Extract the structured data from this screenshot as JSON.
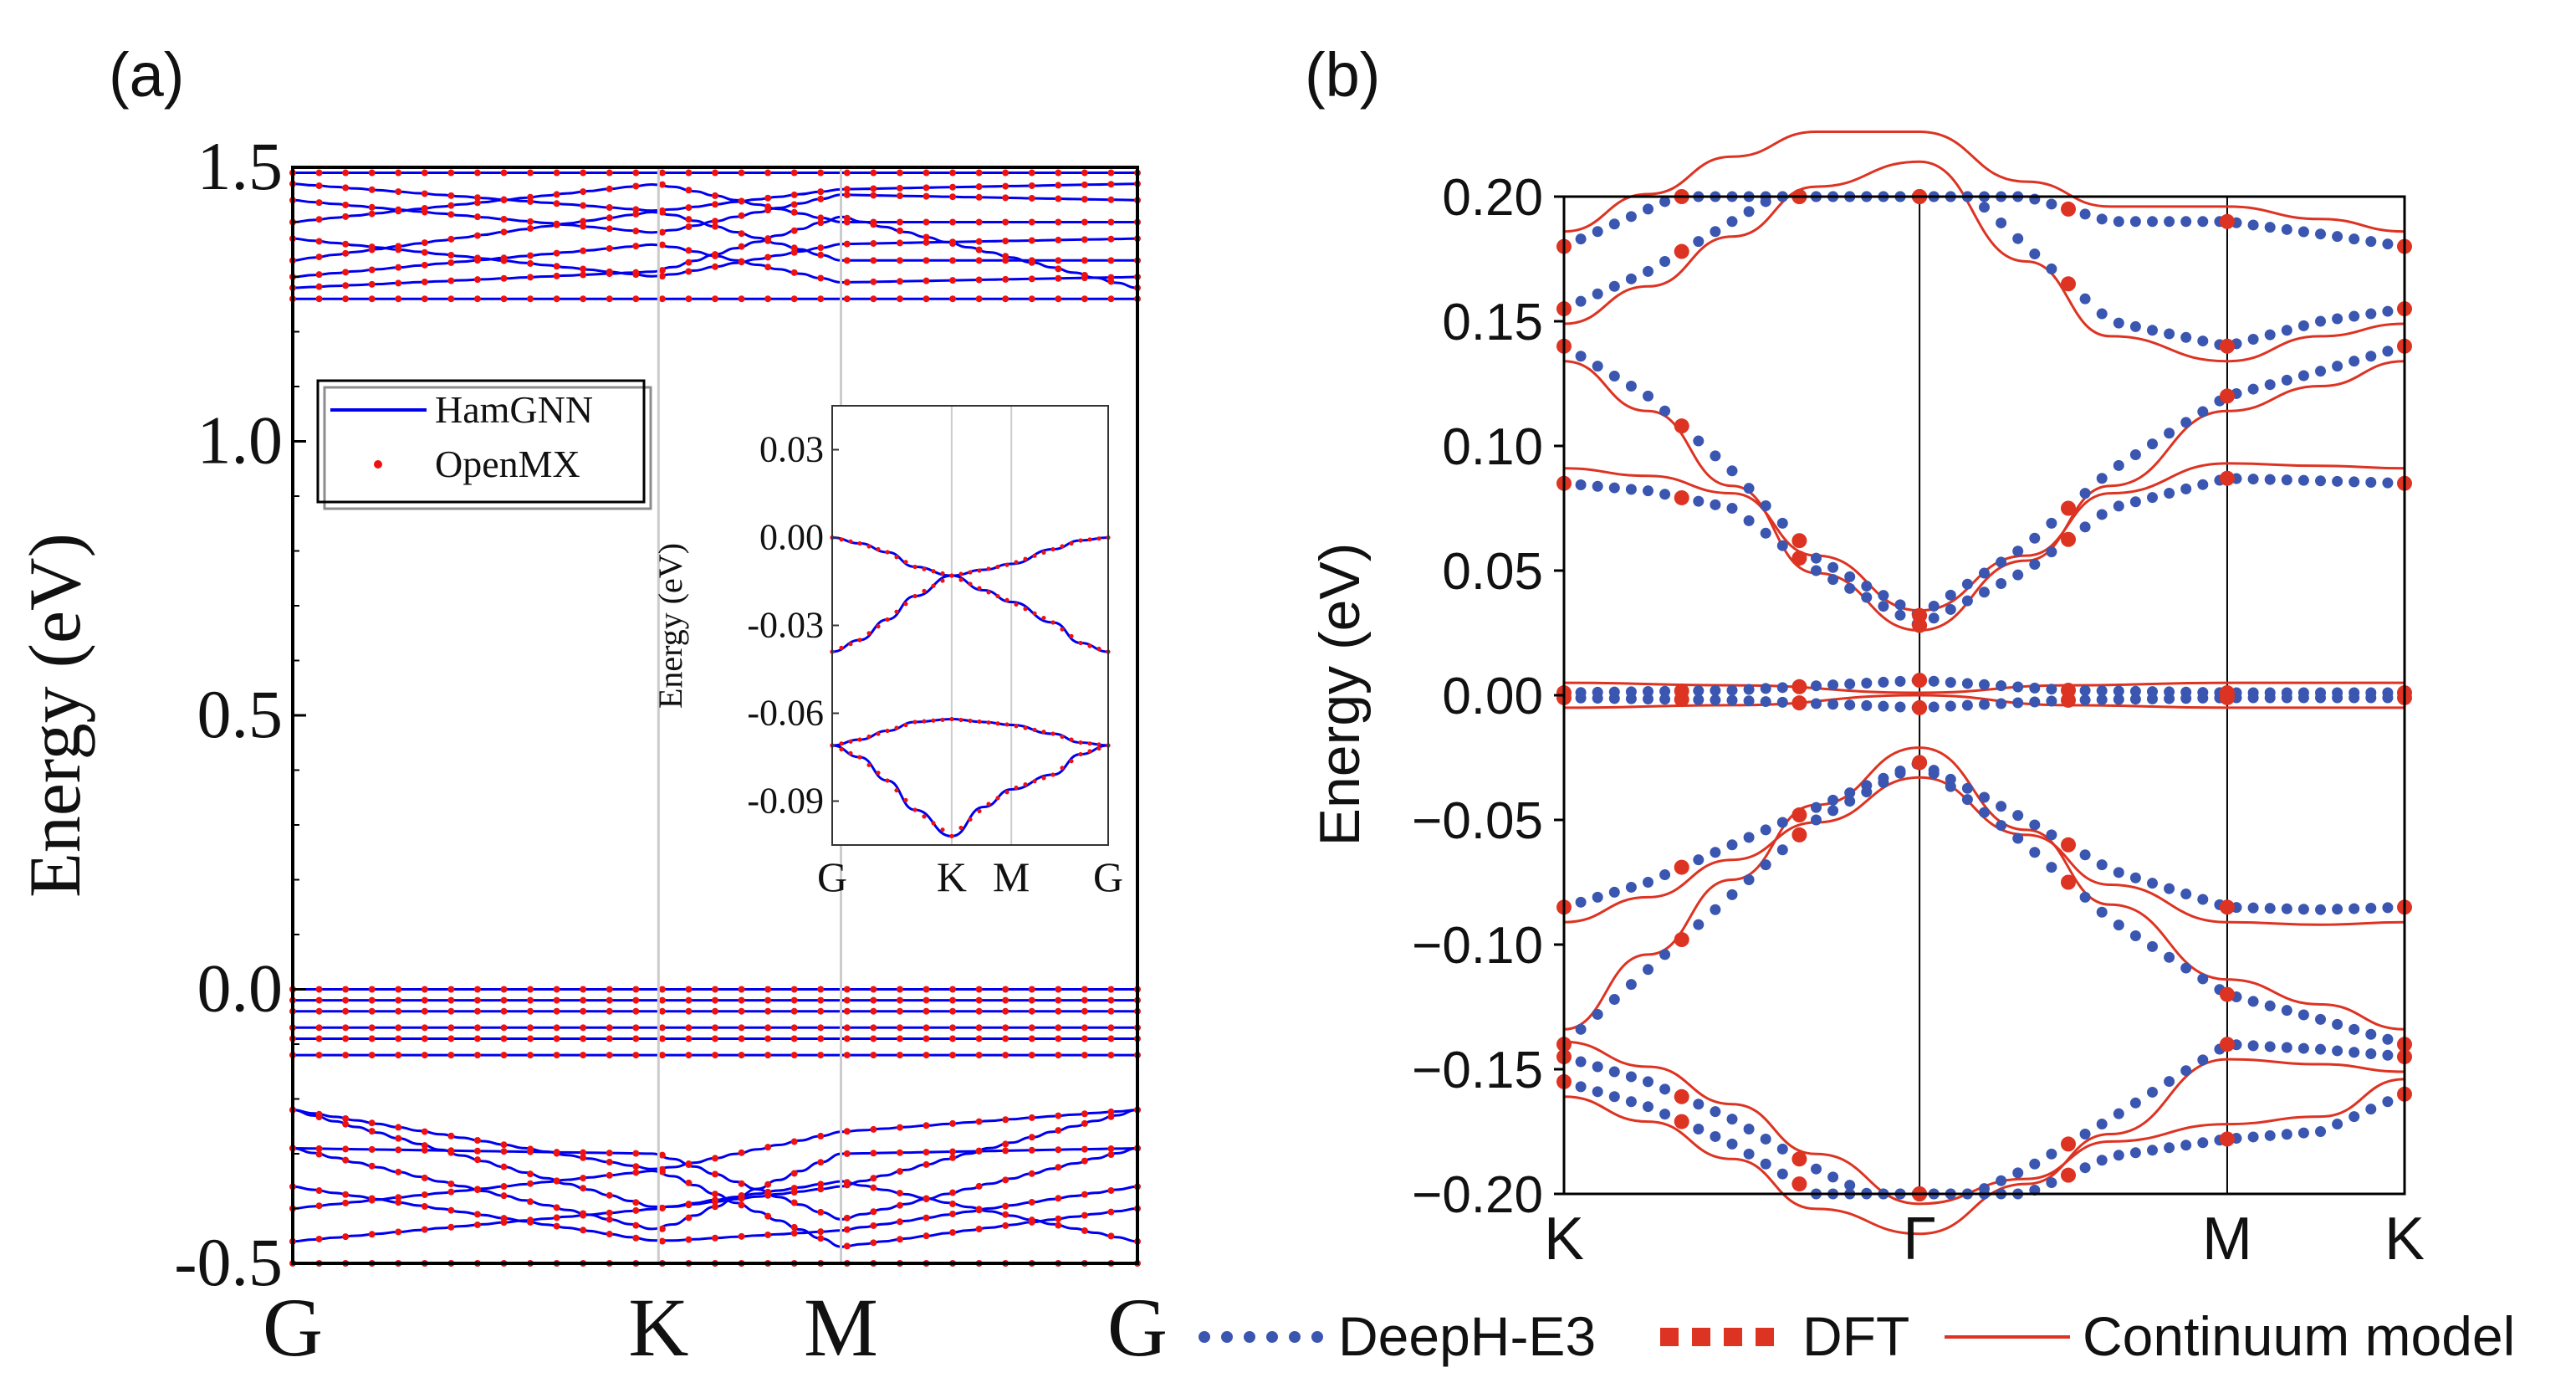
{
  "chart_data": [
    {
      "panel_label": "(a)",
      "type": "line",
      "title": "",
      "xlabel": "",
      "ylabel": "Energy (eV)",
      "ylim": [
        -0.5,
        1.5
      ],
      "yticks": [
        "1.5",
        "1.0",
        "0.5",
        "0.0",
        "-0.5"
      ],
      "ytick_values": [
        1.5,
        1.0,
        0.5,
        0.0,
        -0.5
      ],
      "kpath": [
        "G",
        "K",
        "M",
        "G"
      ],
      "kpath_positions": [
        0,
        0.433,
        0.649,
        1.0
      ],
      "legend": {
        "placement": "upper-left",
        "entries": [
          "HamGNN",
          "OpenMX"
        ]
      },
      "colors": {
        "HamGNN": "#0000ee",
        "OpenMX": "#ee1111",
        "gridline": "#cccccc"
      },
      "bands": {
        "conduction_min": [
          1.26,
          1.26,
          1.26,
          1.26
        ],
        "conduction_max": [
          1.49,
          1.49,
          1.49,
          1.49
        ],
        "valence_top": [
          0.0,
          0.0,
          0.0,
          0.0
        ],
        "valence_bottom": [
          -0.5,
          -0.5,
          -0.5,
          -0.5
        ]
      },
      "inset": {
        "ylabel": "Energy (eV)",
        "ylim": [
          -0.105,
          0.045
        ],
        "yticks": [
          "0.03",
          "0.00",
          "-0.03",
          "-0.06",
          "-0.09"
        ],
        "ytick_values": [
          0.03,
          0.0,
          -0.03,
          -0.06,
          -0.09
        ],
        "kpath": [
          "G",
          "K",
          "M",
          "G"
        ],
        "kpath_positions": [
          0,
          0.433,
          0.649,
          1.0
        ],
        "series": [
          {
            "name": "band1",
            "x": [
              0,
              0.1,
              0.2,
              0.3,
              0.433,
              0.55,
              0.649,
              0.8,
              0.9,
              1.0
            ],
            "values": [
              0.0,
              -0.002,
              -0.005,
              -0.01,
              -0.013,
              -0.011,
              -0.009,
              -0.004,
              -0.001,
              0.0
            ]
          },
          {
            "name": "band2",
            "x": [
              0,
              0.1,
              0.2,
              0.3,
              0.433,
              0.55,
              0.649,
              0.8,
              0.9,
              1.0
            ],
            "values": [
              -0.039,
              -0.035,
              -0.028,
              -0.02,
              -0.013,
              -0.018,
              -0.022,
              -0.029,
              -0.036,
              -0.039
            ]
          },
          {
            "name": "band3",
            "x": [
              0,
              0.1,
              0.2,
              0.3,
              0.433,
              0.55,
              0.649,
              0.8,
              0.9,
              1.0
            ],
            "values": [
              -0.071,
              -0.069,
              -0.066,
              -0.063,
              -0.062,
              -0.063,
              -0.064,
              -0.067,
              -0.07,
              -0.071
            ]
          },
          {
            "name": "band4",
            "x": [
              0,
              0.1,
              0.2,
              0.3,
              0.433,
              0.55,
              0.649,
              0.8,
              0.9,
              1.0
            ],
            "values": [
              -0.071,
              -0.075,
              -0.083,
              -0.093,
              -0.102,
              -0.092,
              -0.086,
              -0.081,
              -0.074,
              -0.071
            ]
          }
        ]
      }
    },
    {
      "panel_label": "(b)",
      "type": "line",
      "title": "",
      "xlabel": "",
      "ylabel": "Energy (eV)",
      "ylim": [
        -0.2,
        0.2
      ],
      "yticks": [
        "0.20",
        "0.15",
        "0.10",
        "0.05",
        "0.00",
        "−0.05",
        "−0.10",
        "−0.15",
        "−0.20"
      ],
      "ytick_values": [
        0.2,
        0.15,
        0.1,
        0.05,
        0.0,
        -0.05,
        -0.1,
        -0.15,
        -0.2
      ],
      "kpath": [
        "K",
        "Γ",
        "M",
        "K"
      ],
      "kpath_positions": [
        0,
        0.423,
        0.789,
        1.0
      ],
      "legend": {
        "placement": "bottom",
        "entries": [
          "DeepH-E3",
          "DFT",
          "Continuum model"
        ]
      },
      "colors": {
        "DeepH-E3": "#3a56b0",
        "DFT": "#dd3322",
        "Continuum model": "#dd3322"
      },
      "series": [
        {
          "name": "c1",
          "x": [
            0,
            0.1,
            0.2,
            0.3,
            0.423,
            0.55,
            0.65,
            0.789,
            0.9,
            1.0
          ],
          "values": [
            0.14,
            0.12,
            0.09,
            0.055,
            0.032,
            0.06,
            0.09,
            0.12,
            0.13,
            0.14
          ]
        },
        {
          "name": "c2",
          "x": [
            0,
            0.1,
            0.2,
            0.3,
            0.423,
            0.55,
            0.65,
            0.789,
            0.9,
            1.0
          ],
          "values": [
            0.085,
            0.082,
            0.075,
            0.05,
            0.028,
            0.05,
            0.075,
            0.087,
            0.086,
            0.085
          ]
        },
        {
          "name": "c3",
          "x": [
            0,
            0.1,
            0.2,
            0.3,
            0.423,
            0.55,
            0.65,
            0.789,
            0.9,
            1.0
          ],
          "values": [
            0.155,
            0.17,
            0.19,
            0.21,
            0.22,
            0.18,
            0.15,
            0.14,
            0.15,
            0.155
          ]
        },
        {
          "name": "c4",
          "x": [
            0,
            0.1,
            0.2,
            0.3,
            0.423,
            0.55,
            0.65,
            0.789,
            0.9,
            1.0
          ],
          "values": [
            0.18,
            0.195,
            0.21,
            0.22,
            0.22,
            0.2,
            0.19,
            0.19,
            0.185,
            0.18
          ]
        },
        {
          "name": "f1",
          "x": [
            0,
            0.2,
            0.423,
            0.6,
            0.789,
            1.0
          ],
          "values": [
            0.001,
            0.002,
            0.006,
            0.002,
            0.001,
            0.001
          ]
        },
        {
          "name": "f2",
          "x": [
            0,
            0.2,
            0.423,
            0.6,
            0.789,
            1.0
          ],
          "values": [
            -0.001,
            -0.002,
            -0.005,
            -0.002,
            -0.001,
            -0.001
          ]
        },
        {
          "name": "v1",
          "x": [
            0,
            0.1,
            0.2,
            0.3,
            0.423,
            0.55,
            0.65,
            0.789,
            0.9,
            1.0
          ],
          "values": [
            -0.085,
            -0.075,
            -0.06,
            -0.045,
            -0.027,
            -0.05,
            -0.07,
            -0.085,
            -0.086,
            -0.085
          ]
        },
        {
          "name": "v2",
          "x": [
            0,
            0.1,
            0.2,
            0.3,
            0.423,
            0.55,
            0.65,
            0.789,
            0.9,
            1.0
          ],
          "values": [
            -0.14,
            -0.11,
            -0.08,
            -0.05,
            -0.027,
            -0.06,
            -0.09,
            -0.12,
            -0.13,
            -0.14
          ]
        },
        {
          "name": "v3",
          "x": [
            0,
            0.1,
            0.2,
            0.3,
            0.423,
            0.55,
            0.65,
            0.789,
            0.9,
            1.0
          ],
          "values": [
            -0.155,
            -0.165,
            -0.18,
            -0.2,
            -0.21,
            -0.19,
            -0.17,
            -0.14,
            -0.142,
            -0.145
          ]
        },
        {
          "name": "v4",
          "x": [
            0,
            0.1,
            0.2,
            0.3,
            0.423,
            0.55,
            0.65,
            0.789,
            0.9,
            1.0
          ],
          "values": [
            -0.145,
            -0.155,
            -0.17,
            -0.19,
            -0.21,
            -0.2,
            -0.185,
            -0.178,
            -0.175,
            -0.16
          ]
        }
      ]
    }
  ]
}
